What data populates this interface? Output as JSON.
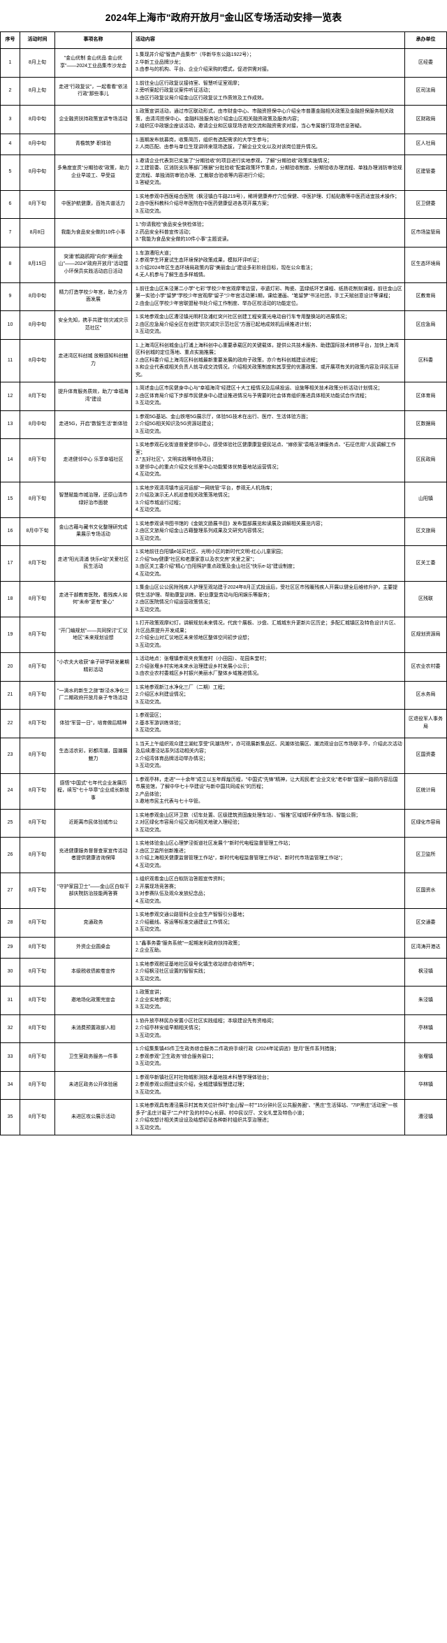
{
  "title": "2024年上海市\"政府开放月\"金山区专场活动安排一览表",
  "headers": [
    "序号",
    "活动时间",
    "事项名称",
    "活动内容",
    "承办单位"
  ],
  "rows": [
    {
      "num": "1",
      "time": "8月上旬",
      "name": "\"金山优制 金山优品 金山优享\"——2024工业品集市沙龙会",
      "content": [
        "1.集现并介绍\"智造产品集市\"（华新华东公路1922号）；",
        "2.华新工业品牌沙龙；",
        "3.由参与的机构、平台、企业介绍采购的模式，促进供需对接。"
      ],
      "org": "区经委"
    },
    {
      "num": "2",
      "time": "8月上旬",
      "name": "走进\"行政复议\"，一起看看\"依法行政\"那些事儿",
      "content": [
        "1.前往全山区行政复议接待室、智慧听证室观摩；",
        "2.旁听案起行政复议案件听证活动；",
        "3.由区行政复议局介绍金山区行政复议工作质效及工作成效。"
      ],
      "org": "区司法局"
    },
    {
      "num": "3",
      "time": "8月中旬",
      "name": "企业融资扶持政策宣讲专场活动",
      "content": [
        "1.政策宣讲活动，通过市区联动形式，由市财金中心、市融资担保中心介绍全市普惠金融相关政策及金融担保服务相关政策，由清湾担保中心、金融科技服务站介绍金山区相关融资政策及服务内容；",
        "2.组织区中政银企座谈活动，邀请企业和区级现场咨询交流和融资需求对接，当心专属银行现场信息答疑。"
      ],
      "org": "区财政局"
    },
    {
      "num": "4",
      "time": "8月中旬",
      "name": "青檐筑梦·职体验",
      "content": [
        "1.面期发布就募岗，收集简历，组织有选配需求的大学生参与；",
        "2.人岗匹配、由参与单位生现讲师来现场选拔，了解企业文化以及对该岗位提升情况。"
      ],
      "org": "区人社局"
    },
    {
      "num": "5",
      "time": "8月中旬",
      "name": "多角度宣贯\"分期验收\"政策，助力企业早竣工、早受益",
      "content": [
        "1.邀请企业代表到已实施了\"分期验收\"的项目进行实地参观，了解\"分期验收\"政策实施情况；",
        "2.工建管委、区消防支队等部门根据\"分批验收\"配套政策环节重点，分期验收制度、分期验收办理流程、单独办理消防审验规定流程、单独消防审验办理、工裁联合验收等内容进行介绍；",
        "3.答疑交流。"
      ],
      "org": "区建管委"
    },
    {
      "num": "6",
      "time": "8月下旬",
      "name": "中医护航健康，百姓共谱活力",
      "content": [
        "1.实地参观中西医结合医院（枫泾镇白牛路219号），稀将健康养疗穴位保健、中医护理、灯船贴敷等中医药适宜技术操作；",
        "2.由中医科教科介绍尽年医院在中医药健康促进各项开展方案；",
        "3.互动交流。"
      ],
      "org": "区卫健委"
    },
    {
      "num": "7",
      "time": "8月8日",
      "name": "我能为食品安全做的10件小事",
      "content": [
        "1.\"你请我检\"食品安全快检体验；",
        "2.药品安全科普宣传活动；",
        "3.\"我能为食品安全做的10件小事\"主题说读。"
      ],
      "org": "区市场监管局"
    },
    {
      "num": "8",
      "time": "8月15日",
      "name": "突涌\"鹤路鸥翔\"向你\"美丽金山\"——2024\"政府开放月\"活动暨小环保员实践活动启日活动",
      "content": [
        "1.车游漕阳大道；",
        "2.参观学生环夏试生态环境保护政策成果，模拟环评听证；",
        "3.介绍2024年区生态环境局政策内容\"美丽金山\"建设多彩阶段目标，现在公众看法；",
        "4.无人机参与了解生态多样城情。"
      ],
      "org": "区生态环境局"
    },
    {
      "num": "9",
      "time": "8月中旬",
      "name": "精力打造学校少年宫，助力全方面发展",
      "content": [
        "1.前往金山区朱泾第二小学\"七彩\"学校少年宫观摩零边营，非遗灯彩、陶瓷、蓝绿纸环艺课程、纸扬花制刻课程，前往金山区第一实验小学\"留梦\"学校少年宫观摩\"留子\"少年宫活动第1期，课绘漫画、\"笔留梦\"书法社团，手工天赋创意设计等课程；",
        "2.由金山区学校少年宫联盟秘书处介绍工作制度、举办区校活动的功能定位。"
      ],
      "org": "区教育局"
    },
    {
      "num": "10",
      "time": "8月中旬",
      "name": "安全先知，携手共建\"防灾减灾示范社区\"",
      "content": [
        "1.实地参观金山区漕泾镇光明村及浦红突兴社区创建工程安置光电动自行车专用整换站的进展情况；",
        "2.由区应急局介绍全区在创建\"防灾减灾示范社区\"方面已起地成效机后续推进计划；",
        "3.互动交流。"
      ],
      "org": "区应急局"
    },
    {
      "num": "11",
      "time": "8月中旬",
      "name": "走进湾区科创城 放眼感知科创魅力",
      "content": [
        "1.上海湾区科创城金山打浦上海科创中心重要承载区的关键载体，提供公共技术服务、助建国际技术转移平台，加快上海湾区科创城的定位落地、重点实施推展；",
        "2.由区科委介绍上海湾区科创城最新重要发展的政府子政策，亦介有科创城建设进程；",
        "3.和企业代表或相关负责人就寻成交流情况，介绍相关政策制度和其享受的优惠政策、或开展项有关的政策内容及评民互研究。"
      ],
      "org": "区科委"
    },
    {
      "num": "12",
      "time": "8月下旬",
      "name": "提升体育服务质效，助力\"幸福海湾\"建设",
      "content": [
        "1.简述金山区市民健身中心与\"幸福海湾\"经建区十大工程情况及后续投运、设施等相关技术政策分析活动计划情况；",
        "2.由区体育局介绍下步部市民健身中心建设推进情况与予需要的社会体育组织推进具体相关功能试合作流程；",
        "3.互动交流。"
      ],
      "org": "区体育局"
    },
    {
      "num": "13",
      "time": "8月中旬",
      "name": "走进5G，开启\"数智生活\"新体验",
      "content": [
        "1.参观5G基站、金山铁塔5G展示厅，体验5G技术在出行、医疗、生活体验方面；",
        "2.介绍5G相关知识及5G资源站建设；",
        "3.互动交流。"
      ],
      "org": "区数据局"
    },
    {
      "num": "14",
      "time": "8月下旬",
      "name": "走进健邻中心 乐享幸福社区",
      "content": [
        "1.实地参观石化街道普爱健邻中心，感受体验社区健康康复便民站点、\"嫁依家\"袁皓法律服务点、\"石征信用\"人民调解工作室；",
        "2.\"五好社区\"，文明实践等特色项目；",
        "3.健邻中心的重点介绍文化邻里中心功能繁体优势基地站运营情况；",
        "4.互动交流。"
      ],
      "org": "区民政局"
    },
    {
      "num": "15",
      "time": "8月下旬",
      "name": "智慧赋能市城治理，还原山清市绿好治市面貌",
      "content": [
        "1.实地步观清湾镇市运河运部\"一网统管\"平台，参观无人机场库；",
        "2.介绍及演示无人机巡查相关政策落地情况；",
        "3.介绍市城运行过程；",
        "4.互动交流。"
      ],
      "org": "山阳镇"
    },
    {
      "num": "16",
      "time": "8月中下旬",
      "name": "金山古藉与藏书文化整理研究成果展示专场活动",
      "content": [
        "1.实地参观读书图书馆的《金姚文肠展书目》发布暨部展览和读展及讲解相关展览内容；",
        "2.由区文旅局介绍金山古藉整理系列成果及文研究内容情况；",
        "3.互动交流。"
      ],
      "org": "区文旅局"
    },
    {
      "num": "17",
      "time": "8月下旬",
      "name": "走进\"阳光清浦 快乐e站\"关爱社区民生活动",
      "content": [
        "1.实地前往白阳镇e站买社区、光明小区的新时代文明-红心儿童家园；",
        "2.介绍\"bay健康\"社区和老康家意以及农交房\"关爱之家\"；",
        "3.由区关工委介绍\"精心\"白阳照护重点政策及金山社区\"快乐e-站\"建设制度；",
        "4.互动交流。"
      ],
      "org": "区关工委"
    },
    {
      "num": "18",
      "time": "8月下旬",
      "name": "走进干部教育医院，看残疾人如何\"未命\"更有\"爱心\"",
      "content": [
        "1.集金山区公公民附残疾人护理至观站建于2024年8月正式投运后，受社区区市残暖残疾人开展以健全后维修升护，主要提供生活护理、帮助康复训练、职业康复劳动与阳闲娱乐等服务；",
        "2.由区医院情况介绍运营政策情况；",
        "3.互动交流。"
      ],
      "org": "区残联"
    },
    {
      "num": "19",
      "time": "8月下旬",
      "name": "\"开门编规划\"——共同探讨\"汇议地区\"未来规划设想",
      "content": [
        "1.打开政策观摩幻灯，讲解规划未来情况，代宾个展板、沙盘、汇城城东升更新片区历史；多配汇城镇区及特色设计片区、片区品质提升开发成果；",
        "2.介绍全山对汇议地区未来领地区整体空间初步设想；",
        "3.互动交流。"
      ],
      "org": "区规划资源局"
    },
    {
      "num": "20",
      "time": "8月下旬",
      "name": "\"小农夫大收获\"亲子研学研发暑期精彩活动",
      "content": [
        "1.活动地点：张堰镇参观夹良策度村（小田园）、花园朱堂村；",
        "2.介绍张堰乡村实地未来水治理建设乡村发展小公示；",
        "3.由农业农村委城区乡村振兴美丽水厂整体乡域推进情况。"
      ],
      "org": "区农业农村委"
    },
    {
      "num": "21",
      "time": "8月下旬",
      "name": "\"一滴水的新生之旅\"新泾水净化三厂二期政府开放月亲子专场活动",
      "content": [
        "1.实地参观新江水净化三厂（二期）工程；",
        "2.介绍区水利建设情况；",
        "3.互动交流。"
      ],
      "org": "区水务局"
    },
    {
      "num": "22",
      "time": "8月下旬",
      "name": "体验\"军营一日\"，培育做后精神",
      "content": [
        "1.参观营区；",
        "2.基本军游训练体验；",
        "3.互动交流。"
      ],
      "org": "区退役军人事务局"
    },
    {
      "num": "23",
      "time": "8月下旬",
      "name": "生态活农彩，彩都湾潮，国潮展魅力",
      "content": [
        "1.当天上午组织观众建立湖虹享受\"风潮场所\"，亦可观展新集品区、风潮体验展区、潮流观设台区市场联手亭，介绍此次活动及后续漕泾站系列活动相关内容；",
        "2.介绍湾体育品牌活动举办情况；",
        "3.互动交流。"
      ],
      "org": "区国资委"
    },
    {
      "num": "24",
      "time": "8月下旬",
      "name": "感悟\"中国式\"七年代企业发展历程，续写\"七十华章\"企业成长新故事",
      "content": [
        "1.参观亭林，走进\"一十余年\"成立以五年辉煌历程，\"中国式\"先锋\"精神，让大观民老\"企业文化\"老中新\"国家一路顾内容后国市展览馆，了解中华七十华建设\"与新中国共同成长\"的历程；",
        "2.产品体验；",
        "3.邀地市民主代表与七十华管。"
      ],
      "org": "区统计局"
    },
    {
      "num": "25",
      "time": "8月下旬",
      "name": "近距离市民体验城市公",
      "content": [
        "1.实地参观金山区环卫数（切车处置、区级建筑资固废处理车站）、\"智推\"区域城环保停车场、智能公厕；",
        "2.对区绿化市容局介绍又询问相关地驶入理经验；",
        "3.互动交流。"
      ],
      "org": "区绿化市容局"
    },
    {
      "num": "26",
      "time": "8月下旬",
      "name": "充进健康服务督督查家宣传活动者提供健康咨询保障",
      "content": [
        "1.实地体验金山区心理梦泾街道社区发展个\"新时代电程监督管理工作站；",
        "2.由区卫监所创新推进；",
        "3.介绍上海相关健康监督管理工作站\"，新时代电程监督管理工作站\"、新时代市场监管理工作站\"；",
        "4.互动交流。"
      ],
      "org": "区卫监所"
    },
    {
      "num": "27",
      "time": "8月下旬",
      "name": "\"守护家园卫士\"——金山区白蚁干部庆院防治技能两答赛",
      "content": [
        "1.组织观看金山区白蚁防治答题宣传资料；",
        "2.开展现场竞答赛；",
        "3.对参赛队伍及观众发放纪念品；",
        "4.互动交流。"
      ],
      "org": "区国资水"
    },
    {
      "num": "28",
      "time": "8月下旬",
      "name": "克通政务",
      "content": [
        "1.实地参观交通公路管科企业会生产智智引分基地；",
        "2.介绍截线、客运等标准交通建设工作情况；",
        "3.互动交流。"
      ],
      "org": "区交通委"
    },
    {
      "num": "29",
      "time": "8月下旬",
      "name": "外资企业圆桌会",
      "content": [
        "1.\"鑫事务委\"服务系统\"一起期发利政府扶持政策；",
        "2.企业互助。"
      ],
      "org": "区湾涛开港达"
    },
    {
      "num": "30",
      "time": "8月下旬",
      "name": "本级税收债款卷宣传",
      "content": [
        "1.实地参观税证基地社区级号化镇生收站综合收待所年；",
        "2.介绍枫泾社区设置的智智实践；",
        "3.互动交流。"
      ],
      "org": "枫泾镇"
    },
    {
      "num": "31",
      "time": "8月下旬",
      "name": "邀地场化政策完宣会",
      "content": [
        "1.政策宣讲；",
        "2.企业实地参观；",
        "3.互动交流。"
      ],
      "org": "朱泾镇"
    },
    {
      "num": "32",
      "time": "8月下旬",
      "name": "未消费预置政部入相",
      "content": [
        "1.协升放亭林民办安置小区社区实践组程；本级建设先有资格阅；",
        "2.介绍亭林安组早期相关情况；",
        "3.互动交流。"
      ],
      "org": "亭林镇"
    },
    {
      "num": "33",
      "time": "8月下旬",
      "name": "卫生室政务服务一件事",
      "content": [
        "1.介绍集集镇4S件卫生政务综合服务二件政府手续行政《2024年延调咨》登月\"医件系列措施；",
        "2.参观参观\"卫生政务\"综合服务窗口；",
        "3.互动交流。"
      ],
      "org": "张堰镇"
    },
    {
      "num": "34",
      "time": "8月下旬",
      "name": "未进区政务公开体验届",
      "content": [
        "1.参观华新镇社区村社物城影测技术基地技术科慧学理体验台；",
        "2.参观参观公厕建设实介绍，全城建镇智慧建过理；",
        "3.互动交流。"
      ],
      "org": "华林镇"
    },
    {
      "num": "35",
      "time": "8月下旬",
      "name": "未进区攻公展示活动",
      "content": [
        "1.实地参观具有漕泾展示村其有关位针作时\"金山智一村\"\"15分钟片区公共服务圈\"、\"黑庄\"生活驿站、\"7IP黑庄\"活动室\"一核多子\"孟庄计载子\"二户村\"及的村中心长廊、村中民议厅、文化礼堂及特色小道；",
        "2.介绍攻想计相关类设设及结想初证各种新村组织共享治理进；",
        "3.互动交流。"
      ],
      "org": "漕泾镇"
    }
  ]
}
